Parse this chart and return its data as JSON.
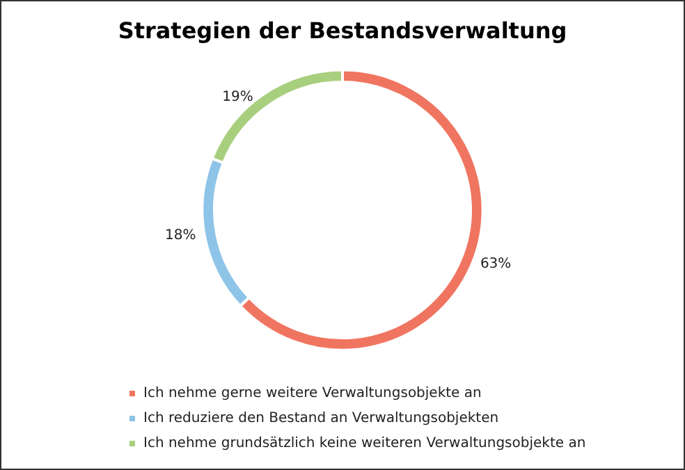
{
  "chart_data": {
    "type": "donut",
    "title": "Strategien der Bestandsverwaltung",
    "categories": [
      "Ich nehme gerne weitere Verwaltungsobjekte an",
      "Ich reduziere den Bestand an Verwaltungsobjekten",
      "Ich nehme grundsätzlich keine weiteren Verwaltungsobjekte an"
    ],
    "values": [
      63,
      18,
      19
    ],
    "value_labels": [
      "63%",
      "18%",
      "19%"
    ],
    "colors": [
      "#f07560",
      "#8ec4e8",
      "#a8cf7e"
    ],
    "legend": "bottom"
  }
}
